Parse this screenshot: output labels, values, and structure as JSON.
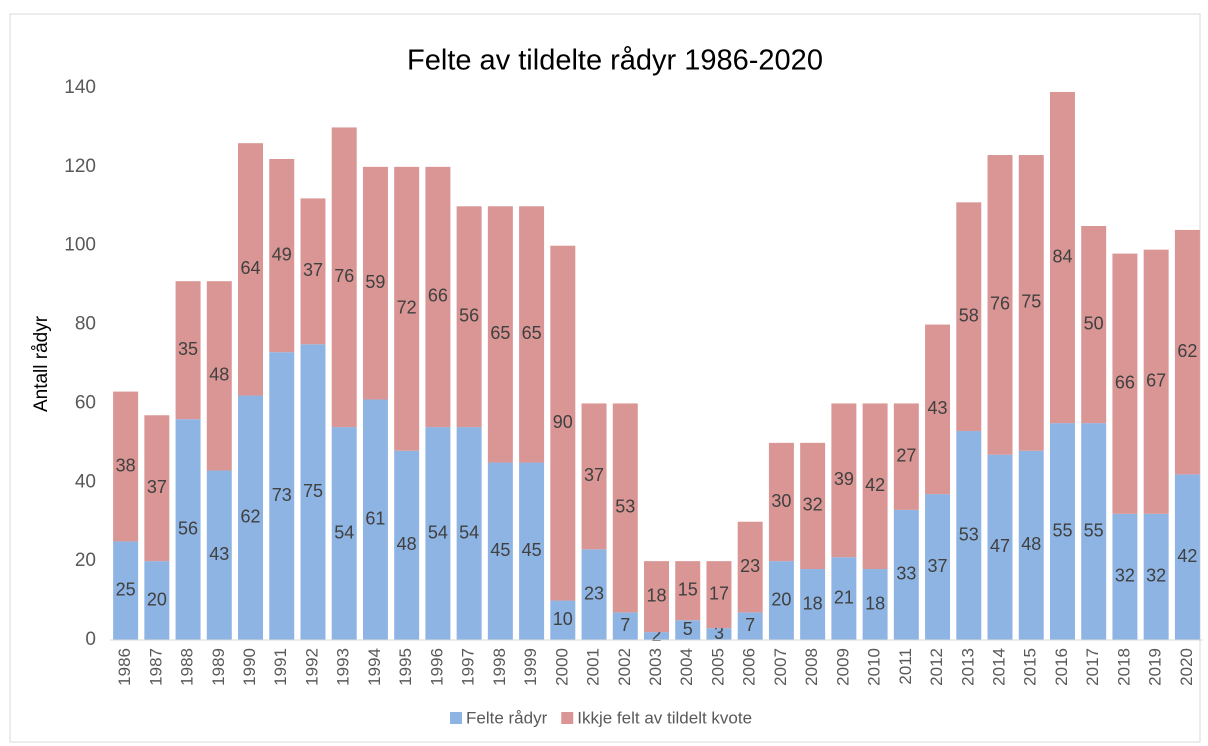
{
  "chart_data": {
    "type": "stacked_bar",
    "title": "Felte av tildelte rådyr 1986-2020",
    "y_label": "Antall rådyr",
    "categories": [
      "1986",
      "1987",
      "1988",
      "1989",
      "1990",
      "1991",
      "1992",
      "1993",
      "1994",
      "1995",
      "1996",
      "1997",
      "1998",
      "1999",
      "2000",
      "2001",
      "2002",
      "2003",
      "2004",
      "2005",
      "2006",
      "2007",
      "2008",
      "2009",
      "2010",
      "2011",
      "2012",
      "2013",
      "2014",
      "2015",
      "2016",
      "2017",
      "2018",
      "2019",
      "2020"
    ],
    "series": [
      {
        "name": "Felte rådyr",
        "color": "#8eb4e3",
        "values": [
          25,
          20,
          56,
          43,
          62,
          73,
          75,
          54,
          61,
          48,
          54,
          54,
          45,
          45,
          10,
          23,
          7,
          2,
          5,
          3,
          7,
          20,
          18,
          21,
          18,
          33,
          37,
          53,
          47,
          48,
          55,
          55,
          32,
          32,
          42
        ]
      },
      {
        "name": "Ikkje felt av tildelt kvote",
        "color": "#d99694",
        "values": [
          38,
          37,
          35,
          48,
          64,
          49,
          37,
          76,
          59,
          72,
          66,
          56,
          65,
          65,
          90,
          37,
          53,
          18,
          15,
          17,
          23,
          30,
          32,
          39,
          42,
          27,
          43,
          58,
          76,
          75,
          84,
          50,
          66,
          67,
          62
        ]
      }
    ],
    "ylim": [
      0,
      140
    ],
    "yticks": [
      0,
      20,
      40,
      60,
      80,
      100,
      120,
      140
    ],
    "grid": false,
    "legend": "bottom"
  }
}
